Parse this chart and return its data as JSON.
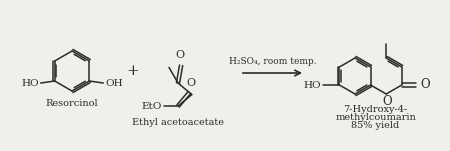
{
  "bg_color": "#f0f0eb",
  "line_color": "#2a2a2a",
  "text_color": "#2a2a2a",
  "reaction_arrow_label_top": "H₂SO₄, room temp.",
  "compound1_label": "Resorcinol",
  "compound2_label": "Ethyl acetoacetate",
  "product_label1": "7-Hydroxy-4-",
  "product_label2": "methylcoumarin",
  "product_label3": "85% yield",
  "fig_width": 4.5,
  "fig_height": 1.51,
  "dpi": 100
}
